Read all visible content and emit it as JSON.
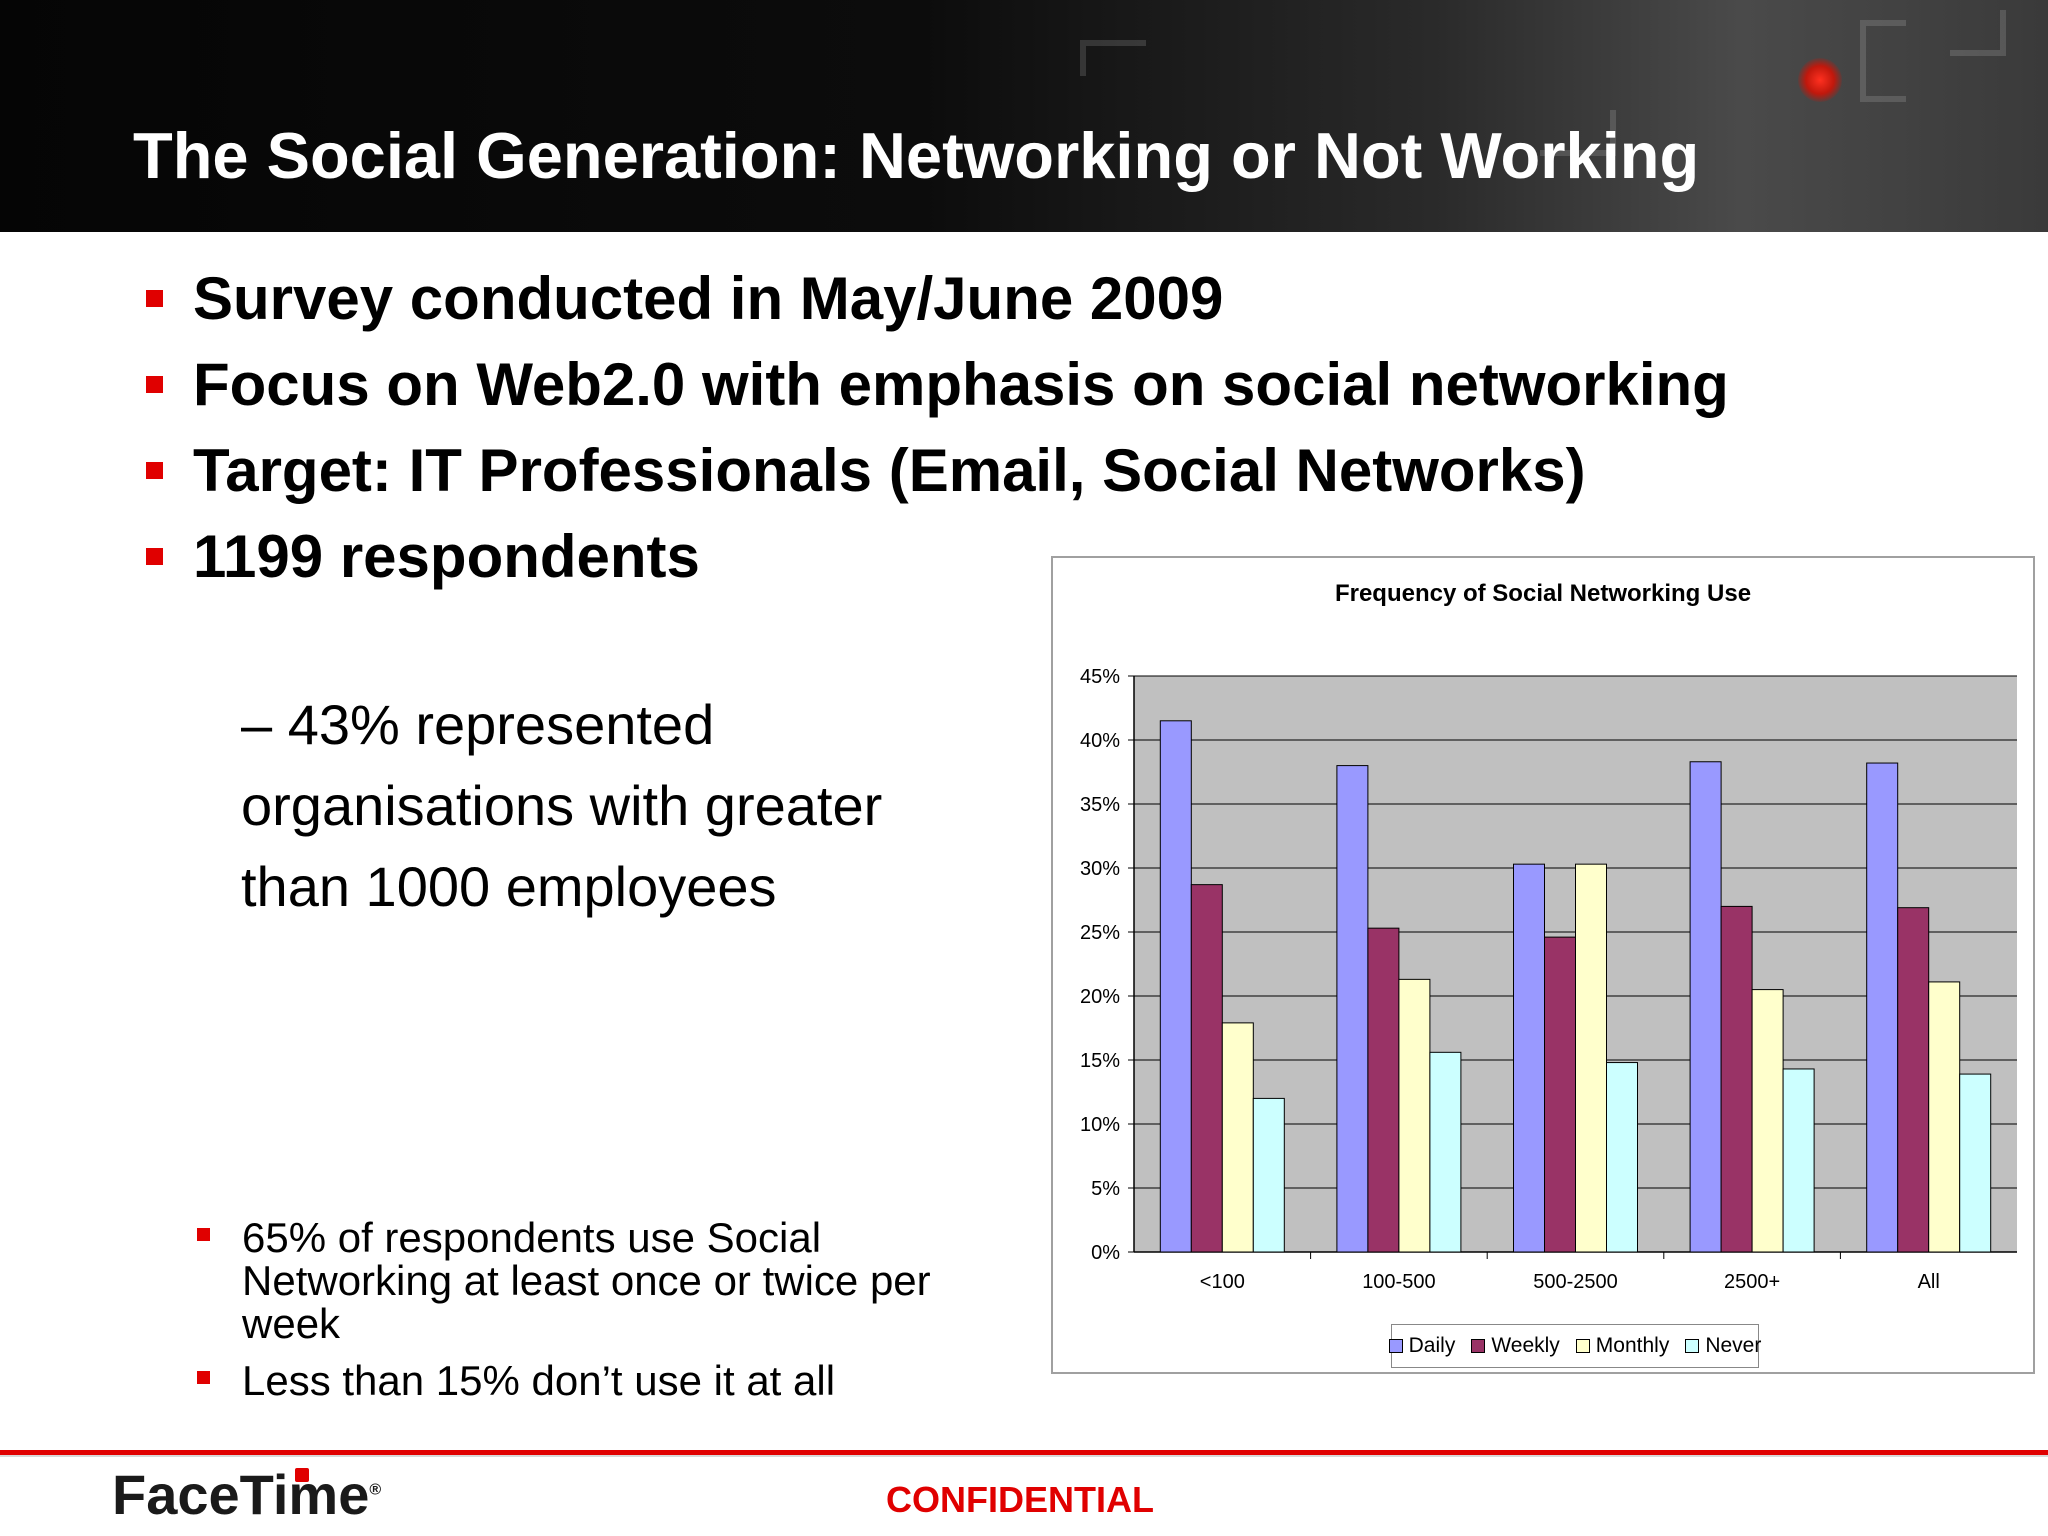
{
  "header": {
    "title": "The Social Generation: Networking or Not Working"
  },
  "bullets": [
    "Survey conducted in May/June 2009",
    "Focus on Web2.0 with emphasis on social networking",
    "Target: IT Professionals (Email, Social Networks)",
    "1199 respondents"
  ],
  "subpoint": "– 43% represented organisations with greater than 1000 employees",
  "findings": [
    "65% of respondents use Social Networking at least once or twice per week",
    "Less than 15% don’t use it at all"
  ],
  "chart_data": {
    "type": "bar",
    "title": "Frequency of Social Networking Use",
    "categories": [
      "<100",
      "100-500",
      "500-2500",
      "2500+",
      "All"
    ],
    "series": [
      {
        "name": "Daily",
        "color": "#9999ff",
        "values": [
          41.5,
          38.0,
          30.3,
          38.3,
          38.2
        ]
      },
      {
        "name": "Weekly",
        "color": "#993366",
        "values": [
          28.7,
          25.3,
          24.6,
          27.0,
          26.9
        ]
      },
      {
        "name": "Monthly",
        "color": "#ffffcc",
        "values": [
          17.9,
          21.3,
          30.3,
          20.5,
          21.1
        ]
      },
      {
        "name": "Never",
        "color": "#ccffff",
        "values": [
          12.0,
          15.6,
          14.8,
          14.3,
          13.9
        ]
      }
    ],
    "ylim": [
      0,
      45
    ],
    "yticks": [
      "0%",
      "5%",
      "10%",
      "15%",
      "20%",
      "25%",
      "30%",
      "35%",
      "40%",
      "45%"
    ],
    "grid": true,
    "legend": "bottom"
  },
  "footer": {
    "logo": "FaceTime",
    "confidential": "CONFIDENTIAL"
  }
}
